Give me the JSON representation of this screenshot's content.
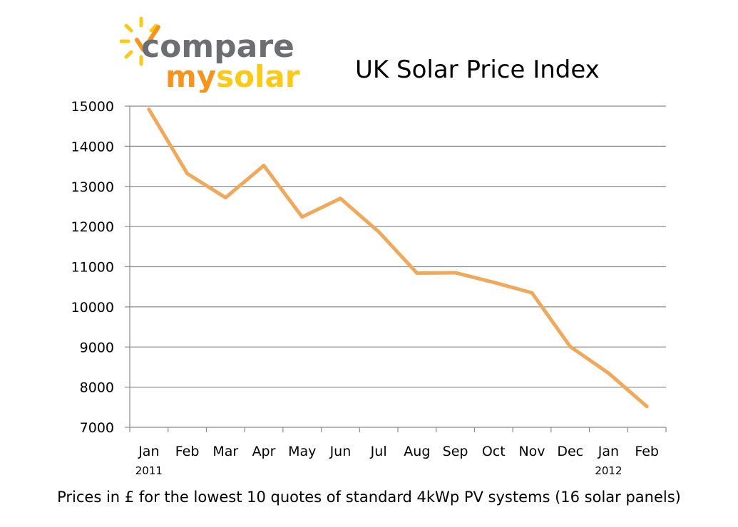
{
  "brand": {
    "word1": "compare",
    "word2a": "my",
    "word2b": "solar",
    "colors": {
      "grey": "#6d6e71",
      "orange": "#f7941d",
      "yellow": "#fcc917"
    }
  },
  "chart_data": {
    "type": "line",
    "title": "UK Solar Price Index",
    "caption": "Prices in £ for the lowest 10 quotes of standard 4kWp PV systems (16 solar panels)",
    "categories": [
      "Jan",
      "Feb",
      "Mar",
      "Apr",
      "May",
      "Jun",
      "Jul",
      "Aug",
      "Sep",
      "Oct",
      "Nov",
      "Dec",
      "Jan",
      "Feb"
    ],
    "year_labels": [
      {
        "index": 0,
        "label": "2011"
      },
      {
        "index": 12,
        "label": "2012"
      }
    ],
    "series": [
      {
        "values": [
          14920,
          13320,
          12720,
          13520,
          12240,
          12700,
          11870,
          10840,
          10850,
          10610,
          10350,
          9010,
          8350,
          7520
        ]
      }
    ],
    "ylim": [
      7000,
      15000
    ],
    "yticks": [
      7000,
      8000,
      9000,
      10000,
      11000,
      12000,
      13000,
      14000,
      15000
    ],
    "grid": true,
    "line_color": "#f0a85a",
    "xlabel": "",
    "ylabel": ""
  }
}
